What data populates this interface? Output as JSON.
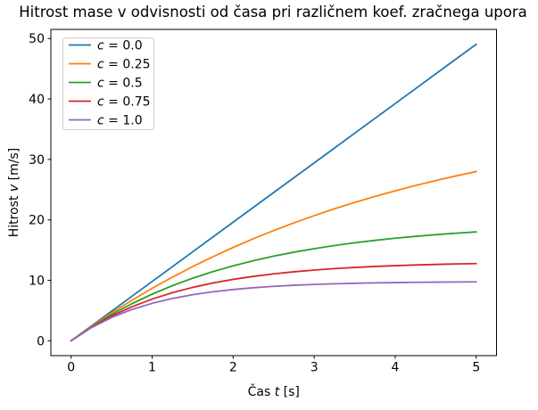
{
  "figure": {
    "background": "#ffffff"
  },
  "chart_data": {
    "type": "line",
    "title": "Hitrost mase v odvisnosti od časa pri različnem koef. zračnega upora",
    "xlabel": "Čas t [s]",
    "ylabel": "Hitrost v [m/s]",
    "xlim": [
      -0.25,
      5.25
    ],
    "ylim": [
      -2.4525,
      51.5025
    ],
    "x_ticks": [
      0,
      1,
      2,
      3,
      4,
      5
    ],
    "y_ticks": [
      0,
      10,
      20,
      30,
      40,
      50
    ],
    "grid": false,
    "legend_position": "upper left",
    "axis_color": "#000000",
    "legend_border_color": "#cccccc",
    "x": [
      0,
      0.25,
      0.5,
      0.75,
      1,
      1.25,
      1.5,
      1.75,
      2,
      2.25,
      2.5,
      2.75,
      3,
      3.25,
      3.5,
      3.75,
      4,
      4.25,
      4.5,
      4.75,
      5
    ],
    "series": [
      {
        "name": "c = 0.0",
        "color": "#1f77b4",
        "values": [
          0,
          2.453,
          4.905,
          7.358,
          9.81,
          12.263,
          14.715,
          17.168,
          19.62,
          22.073,
          24.525,
          26.978,
          29.43,
          31.883,
          34.335,
          36.788,
          39.24,
          41.693,
          44.145,
          46.598,
          49.05
        ]
      },
      {
        "name": "c = 0.25",
        "color": "#ff7f0e",
        "values": [
          0,
          2.378,
          4.611,
          6.709,
          8.68,
          10.531,
          12.271,
          13.905,
          15.44,
          16.882,
          18.236,
          19.509,
          20.704,
          21.828,
          22.883,
          23.874,
          24.804,
          25.679,
          26.501,
          27.273,
          27.998
        ]
      },
      {
        "name": "c = 0.5",
        "color": "#2ca02c",
        "values": [
          0,
          2.305,
          4.34,
          6.135,
          7.72,
          9.118,
          10.352,
          11.441,
          12.402,
          13.25,
          13.999,
          14.659,
          15.242,
          15.757,
          16.211,
          16.611,
          16.965,
          17.277,
          17.552,
          17.795,
          18.01
        ]
      },
      {
        "name": "c = 0.75",
        "color": "#d62728",
        "values": [
          0,
          2.236,
          4.09,
          5.627,
          6.901,
          7.958,
          8.834,
          9.56,
          10.161,
          10.66,
          11.074,
          11.417,
          11.701,
          11.937,
          12.133,
          12.295,
          12.429,
          12.54,
          12.632,
          12.709,
          12.772
        ]
      },
      {
        "name": "c = 1.0",
        "color": "#9467bd",
        "values": [
          0,
          2.17,
          3.86,
          5.176,
          6.201,
          6.999,
          7.621,
          8.105,
          8.482,
          8.776,
          9.005,
          9.183,
          9.322,
          9.43,
          9.514,
          9.579,
          9.63,
          9.67,
          9.701,
          9.725,
          9.744
        ]
      }
    ]
  }
}
